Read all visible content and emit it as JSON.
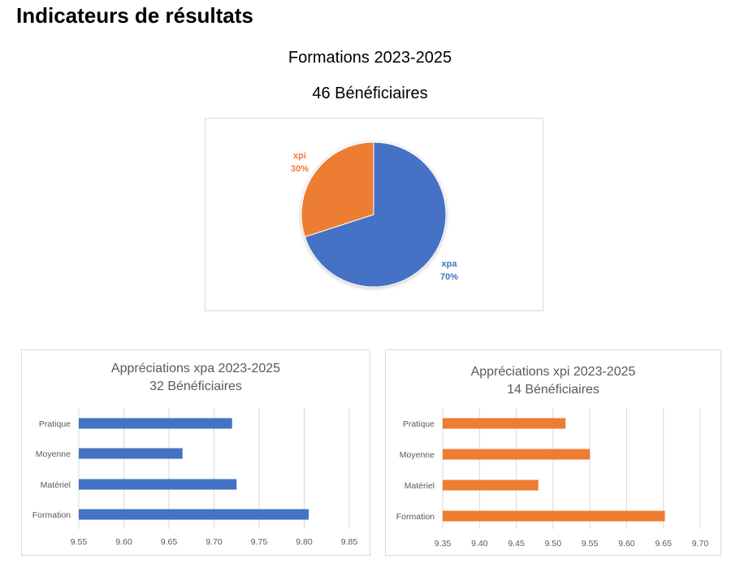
{
  "page": {
    "title": "Indicateurs de résultats",
    "subtitle1": "Formations 2023-2025",
    "subtitle2": "46 Bénéficiaires"
  },
  "colors": {
    "xpa": "#4472c4",
    "xpi": "#ed7d31",
    "grid": "#d9d9d9",
    "axis_text": "#595959"
  },
  "chart_data": [
    {
      "type": "pie",
      "id": "pie",
      "slices": [
        {
          "label": "xpa",
          "value": 70,
          "percent_label": "70%",
          "color": "#4472c4"
        },
        {
          "label": "xpi",
          "value": 30,
          "percent_label": "30%",
          "color": "#ed7d31"
        }
      ]
    },
    {
      "type": "bar",
      "orientation": "horizontal",
      "id": "xpa",
      "title_line1": "Appréciations xpa 2023-2025",
      "title_line2": "32 Bénéficiaires",
      "categories": [
        "Pratique",
        "Moyenne",
        "Matériel",
        "Formation"
      ],
      "values": [
        9.72,
        9.665,
        9.725,
        9.805
      ],
      "xlim": [
        9.55,
        9.85
      ],
      "ticks": [
        "9.55",
        "9.60",
        "9.65",
        "9.70",
        "9.75",
        "9.80",
        "9.85"
      ],
      "color": "#4472c4"
    },
    {
      "type": "bar",
      "orientation": "horizontal",
      "id": "xpi",
      "title_line1": "Appréciations xpi 2023-2025",
      "title_line2": "14 Bénéficiaires",
      "categories": [
        "Pratique",
        "Moyenne",
        "Matériel",
        "Formation"
      ],
      "values": [
        9.517,
        9.55,
        9.48,
        9.652
      ],
      "xlim": [
        9.35,
        9.7
      ],
      "ticks": [
        "9.35",
        "9.40",
        "9.45",
        "9.50",
        "9.55",
        "9.60",
        "9.65",
        "9.70"
      ],
      "color": "#ed7d31"
    }
  ]
}
